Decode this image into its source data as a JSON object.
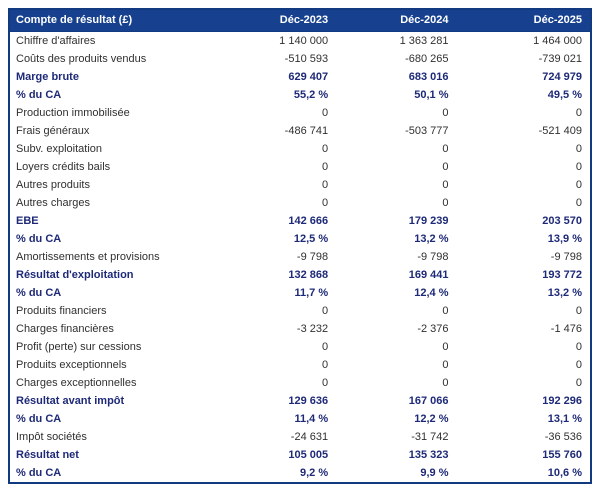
{
  "colors": {
    "header_bg": "#17418f",
    "header_text": "#ffffff",
    "border": "#123a80",
    "emphasis_text": "#1e2a78",
    "body_text": "#303030"
  },
  "chart_data": {
    "type": "table",
    "title": "Compte de résultat (£)",
    "columns": [
      "Déc-2023",
      "Déc-2024",
      "Déc-2025"
    ],
    "rows": [
      {
        "label": "Chiffre d'affaires",
        "values": [
          "1 140 000",
          "1 363 281",
          "1 464 000"
        ],
        "bold": false
      },
      {
        "label": "Coûts des produits vendus",
        "values": [
          "-510 593",
          "-680 265",
          "-739 021"
        ],
        "bold": false
      },
      {
        "label": "Marge brute",
        "values": [
          "629 407",
          "683 016",
          "724 979"
        ],
        "bold": true
      },
      {
        "label": "% du CA",
        "values": [
          "55,2 %",
          "50,1 %",
          "49,5 %"
        ],
        "bold": true
      },
      {
        "label": "Production immobilisée",
        "values": [
          "0",
          "0",
          "0"
        ],
        "bold": false
      },
      {
        "label": "Frais généraux",
        "values": [
          "-486 741",
          "-503 777",
          "-521 409"
        ],
        "bold": false
      },
      {
        "label": "Subv. exploitation",
        "values": [
          "0",
          "0",
          "0"
        ],
        "bold": false
      },
      {
        "label": "Loyers crédits bails",
        "values": [
          "0",
          "0",
          "0"
        ],
        "bold": false
      },
      {
        "label": "Autres produits",
        "values": [
          "0",
          "0",
          "0"
        ],
        "bold": false
      },
      {
        "label": "Autres charges",
        "values": [
          "0",
          "0",
          "0"
        ],
        "bold": false
      },
      {
        "label": "EBE",
        "values": [
          "142 666",
          "179 239",
          "203 570"
        ],
        "bold": true
      },
      {
        "label": "% du CA",
        "values": [
          "12,5 %",
          "13,2 %",
          "13,9 %"
        ],
        "bold": true
      },
      {
        "label": "Amortissements et provisions",
        "values": [
          "-9 798",
          "-9 798",
          "-9 798"
        ],
        "bold": false
      },
      {
        "label": "Résultat d'exploitation",
        "values": [
          "132 868",
          "169 441",
          "193 772"
        ],
        "bold": true
      },
      {
        "label": "% du CA",
        "values": [
          "11,7 %",
          "12,4 %",
          "13,2 %"
        ],
        "bold": true
      },
      {
        "label": "Produits financiers",
        "values": [
          "0",
          "0",
          "0"
        ],
        "bold": false
      },
      {
        "label": "Charges financières",
        "values": [
          "-3 232",
          "-2 376",
          "-1 476"
        ],
        "bold": false
      },
      {
        "label": "Profit (perte) sur cessions",
        "values": [
          "0",
          "0",
          "0"
        ],
        "bold": false
      },
      {
        "label": "Produits exceptionnels",
        "values": [
          "0",
          "0",
          "0"
        ],
        "bold": false
      },
      {
        "label": "Charges exceptionnelles",
        "values": [
          "0",
          "0",
          "0"
        ],
        "bold": false
      },
      {
        "label": "Résultat avant impôt",
        "values": [
          "129 636",
          "167 066",
          "192 296"
        ],
        "bold": true
      },
      {
        "label": "% du CA",
        "values": [
          "11,4 %",
          "12,2 %",
          "13,1 %"
        ],
        "bold": true
      },
      {
        "label": "Impôt sociétés",
        "values": [
          "-24 631",
          "-31 742",
          "-36 536"
        ],
        "bold": false
      },
      {
        "label": "Résultat net",
        "values": [
          "105 005",
          "135 323",
          "155 760"
        ],
        "bold": true
      },
      {
        "label": "% du CA",
        "values": [
          "9,2 %",
          "9,9 %",
          "10,6 %"
        ],
        "bold": true
      }
    ]
  }
}
